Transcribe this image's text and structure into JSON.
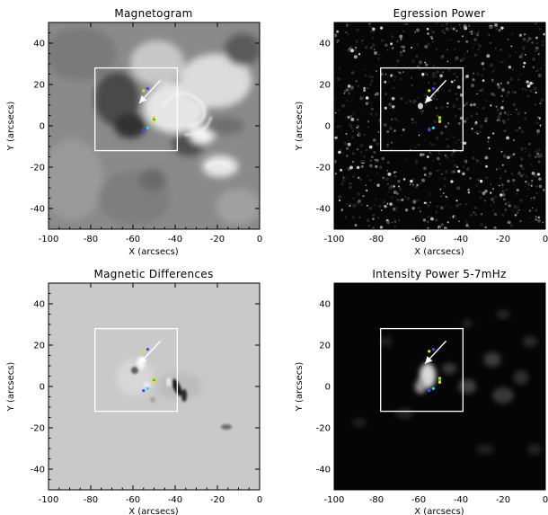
{
  "panels": [
    {
      "id": "magnetogram",
      "title": "Magnetogram",
      "xlabel": "X (arcsecs)",
      "ylabel": "Y (arcsecs)",
      "xlim": [
        -100,
        0
      ],
      "ylim": [
        -50,
        50
      ],
      "xticks": [
        "-100",
        "-80",
        "-60",
        "-40",
        "-20",
        "0"
      ],
      "yticks": [
        "-40",
        "-20",
        "0",
        "20",
        "40"
      ],
      "image_style": "gray-field"
    },
    {
      "id": "egression",
      "title": "Egression Power",
      "xlabel": "X (arcsecs)",
      "ylabel": "Y (arcsecs)",
      "xlim": [
        -100,
        0
      ],
      "ylim": [
        -50,
        50
      ],
      "xticks": [
        "-100",
        "-80",
        "-60",
        "-40",
        "-20",
        "0"
      ],
      "yticks": [
        "-40",
        "-20",
        "0",
        "20",
        "40"
      ],
      "image_style": "speckle"
    },
    {
      "id": "magdiff",
      "title": "Magnetic Differences",
      "xlabel": "X (arcsecs)",
      "ylabel": "Y (arcsecs)",
      "xlim": [
        -100,
        0
      ],
      "ylim": [
        -50,
        50
      ],
      "xticks": [
        "-100",
        "-80",
        "-60",
        "-40",
        "-20",
        "0"
      ],
      "yticks": [
        "-40",
        "-20",
        "0",
        "20",
        "40"
      ],
      "image_style": "light-gray"
    },
    {
      "id": "intensity",
      "title": "Intensity Power 5-7mHz",
      "xlabel": "X (arcsecs)",
      "ylabel": "Y (arcsecs)",
      "xlim": [
        -100,
        0
      ],
      "ylim": [
        -50,
        50
      ],
      "xticks": [
        "-100",
        "-80",
        "-60",
        "-40",
        "-20",
        "0"
      ],
      "yticks": [
        "-40",
        "-20",
        "0",
        "20",
        "40"
      ],
      "image_style": "dark-glow"
    }
  ],
  "overlay": {
    "box": {
      "x": [
        -78,
        -39
      ],
      "y": [
        -12,
        28
      ]
    },
    "arrow": {
      "from": [
        -47,
        22
      ],
      "to": [
        -57,
        11
      ]
    },
    "markers": [
      {
        "x": -55,
        "y": 17,
        "color": "#f0e000"
      },
      {
        "x": -53,
        "y": 18,
        "color": "#3050ff"
      },
      {
        "x": -50,
        "y": 4,
        "color": "#f0e000"
      },
      {
        "x": -50,
        "y": 3,
        "color": "#30c040"
      },
      {
        "x": -50,
        "y": 2,
        "color": "#f0e000"
      },
      {
        "x": -53,
        "y": -1,
        "color": "#20e0f0"
      },
      {
        "x": -55,
        "y": -2,
        "color": "#3050ff"
      }
    ],
    "colors": {
      "box": "#ffffff",
      "arrow": "#ffffff"
    }
  }
}
